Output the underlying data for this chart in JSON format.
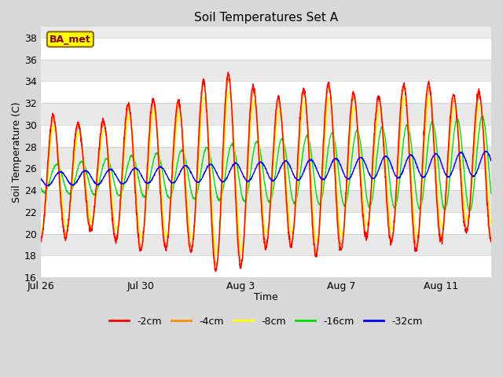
{
  "title": "Soil Temperatures Set A",
  "xlabel": "Time",
  "ylabel": "Soil Temperature (C)",
  "ylim": [
    16,
    39
  ],
  "yticks": [
    16,
    18,
    20,
    22,
    24,
    26,
    28,
    30,
    32,
    34,
    36,
    38
  ],
  "annotation": "BA_met",
  "annotation_color": "#8B0000",
  "annotation_bg": "#FFFF00",
  "annotation_border": "#8B6914",
  "series_colors": [
    "#FF0000",
    "#FF8C00",
    "#FFFF00",
    "#00DD00",
    "#0000FF"
  ],
  "series_labels": [
    "-2cm",
    "-4cm",
    "-8cm",
    "-16cm",
    "-32cm"
  ],
  "n_points": 1800,
  "start_day": 0,
  "end_day": 18,
  "background_color": "#D8D8D8",
  "plot_bg_light": "#EBEBEB",
  "plot_bg_dark": "#DCDCDC",
  "grid_color": "#FFFFFF",
  "xtick_positions": [
    0,
    4,
    8,
    12,
    16
  ],
  "xtick_labels": [
    "Jul 26",
    "Jul 30",
    "Aug 3",
    "Aug 7",
    "Aug 11"
  ],
  "figsize": [
    6.4,
    4.8
  ],
  "dpi": 100
}
